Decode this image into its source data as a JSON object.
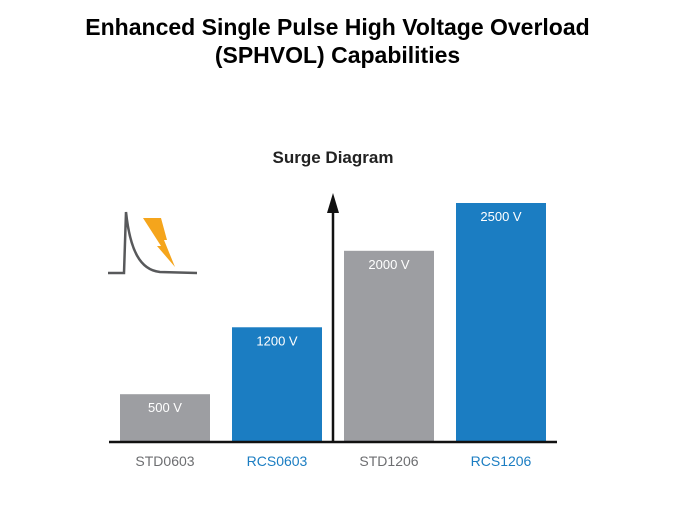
{
  "slide": {
    "title_line1": "Enhanced Single Pulse High Voltage Overload",
    "title_line2": "(SPHVOL) Capabilities"
  },
  "icons": [
    "surge-pulse-icon",
    "lightning-bolt-icon"
  ],
  "colors": {
    "std": "#9d9ea2",
    "rcs": "#1b7dc2",
    "std_label": "#6d6e71",
    "rcs_label": "#1b7dc2",
    "bolt": "#f5a51c"
  },
  "chart_data": {
    "type": "bar",
    "title": "Surge Diagram",
    "categories": [
      "STD0603",
      "RCS0603",
      "STD1206",
      "RCS1206"
    ],
    "values": [
      500,
      1200,
      2000,
      2500
    ],
    "labels": [
      "500 V",
      "1200 V",
      "2000 V",
      "2500 V"
    ],
    "groups": [
      "std",
      "rcs",
      "std",
      "rcs"
    ],
    "xlabel": "",
    "ylabel": "",
    "ylim": [
      0,
      2600
    ],
    "grid": false
  }
}
